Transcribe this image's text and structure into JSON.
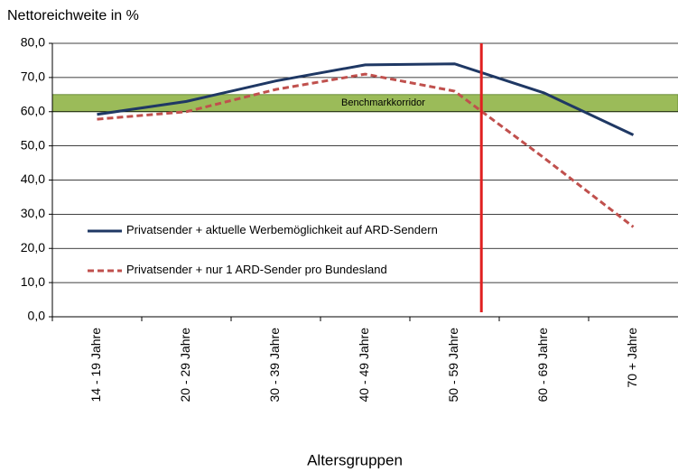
{
  "chart_data": {
    "type": "line",
    "title": "Nettoreichweite in %",
    "x_label": "Altersgruppen",
    "categories": [
      "14 - 19 Jahre",
      "20 - 29 Jahre",
      "30 - 39 Jahre",
      "40 - 49 Jahre",
      "50 - 59 Jahre",
      "60 - 69 Jahre",
      "70 + Jahre"
    ],
    "series": [
      {
        "name": "Privatsender + aktuelle Werbemöglichkeit auf ARD-Sendern",
        "color": "#1f3864",
        "dash": false,
        "values": [
          59.2,
          63,
          69,
          73.7,
          74,
          65.5,
          53.2
        ]
      },
      {
        "name": "Privatsender + nur 1 ARD-Sender pro Bundesland",
        "color": "#c0504d",
        "dash": true,
        "values": [
          57.8,
          60,
          66.5,
          71,
          66,
          46.5,
          26.3
        ]
      }
    ],
    "band": {
      "label": "Benchmarkkorridor",
      "from": 60,
      "to": 65,
      "color": "#9bbb59"
    },
    "vline": {
      "position": 4.3,
      "color": "#e02020"
    },
    "ylim": [
      0,
      80
    ],
    "yticks": [
      {
        "value": 0,
        "label": "0,0"
      },
      {
        "value": 10,
        "label": "10,0"
      },
      {
        "value": 20,
        "label": "20,0"
      },
      {
        "value": 30,
        "label": "30,0"
      },
      {
        "value": 40,
        "label": "40,0"
      },
      {
        "value": 50,
        "label": "50,0"
      },
      {
        "value": 60,
        "label": "60,0"
      },
      {
        "value": 70,
        "label": "70,0"
      },
      {
        "value": 80,
        "label": "80,0"
      }
    ],
    "grid": true,
    "legend": "left"
  }
}
